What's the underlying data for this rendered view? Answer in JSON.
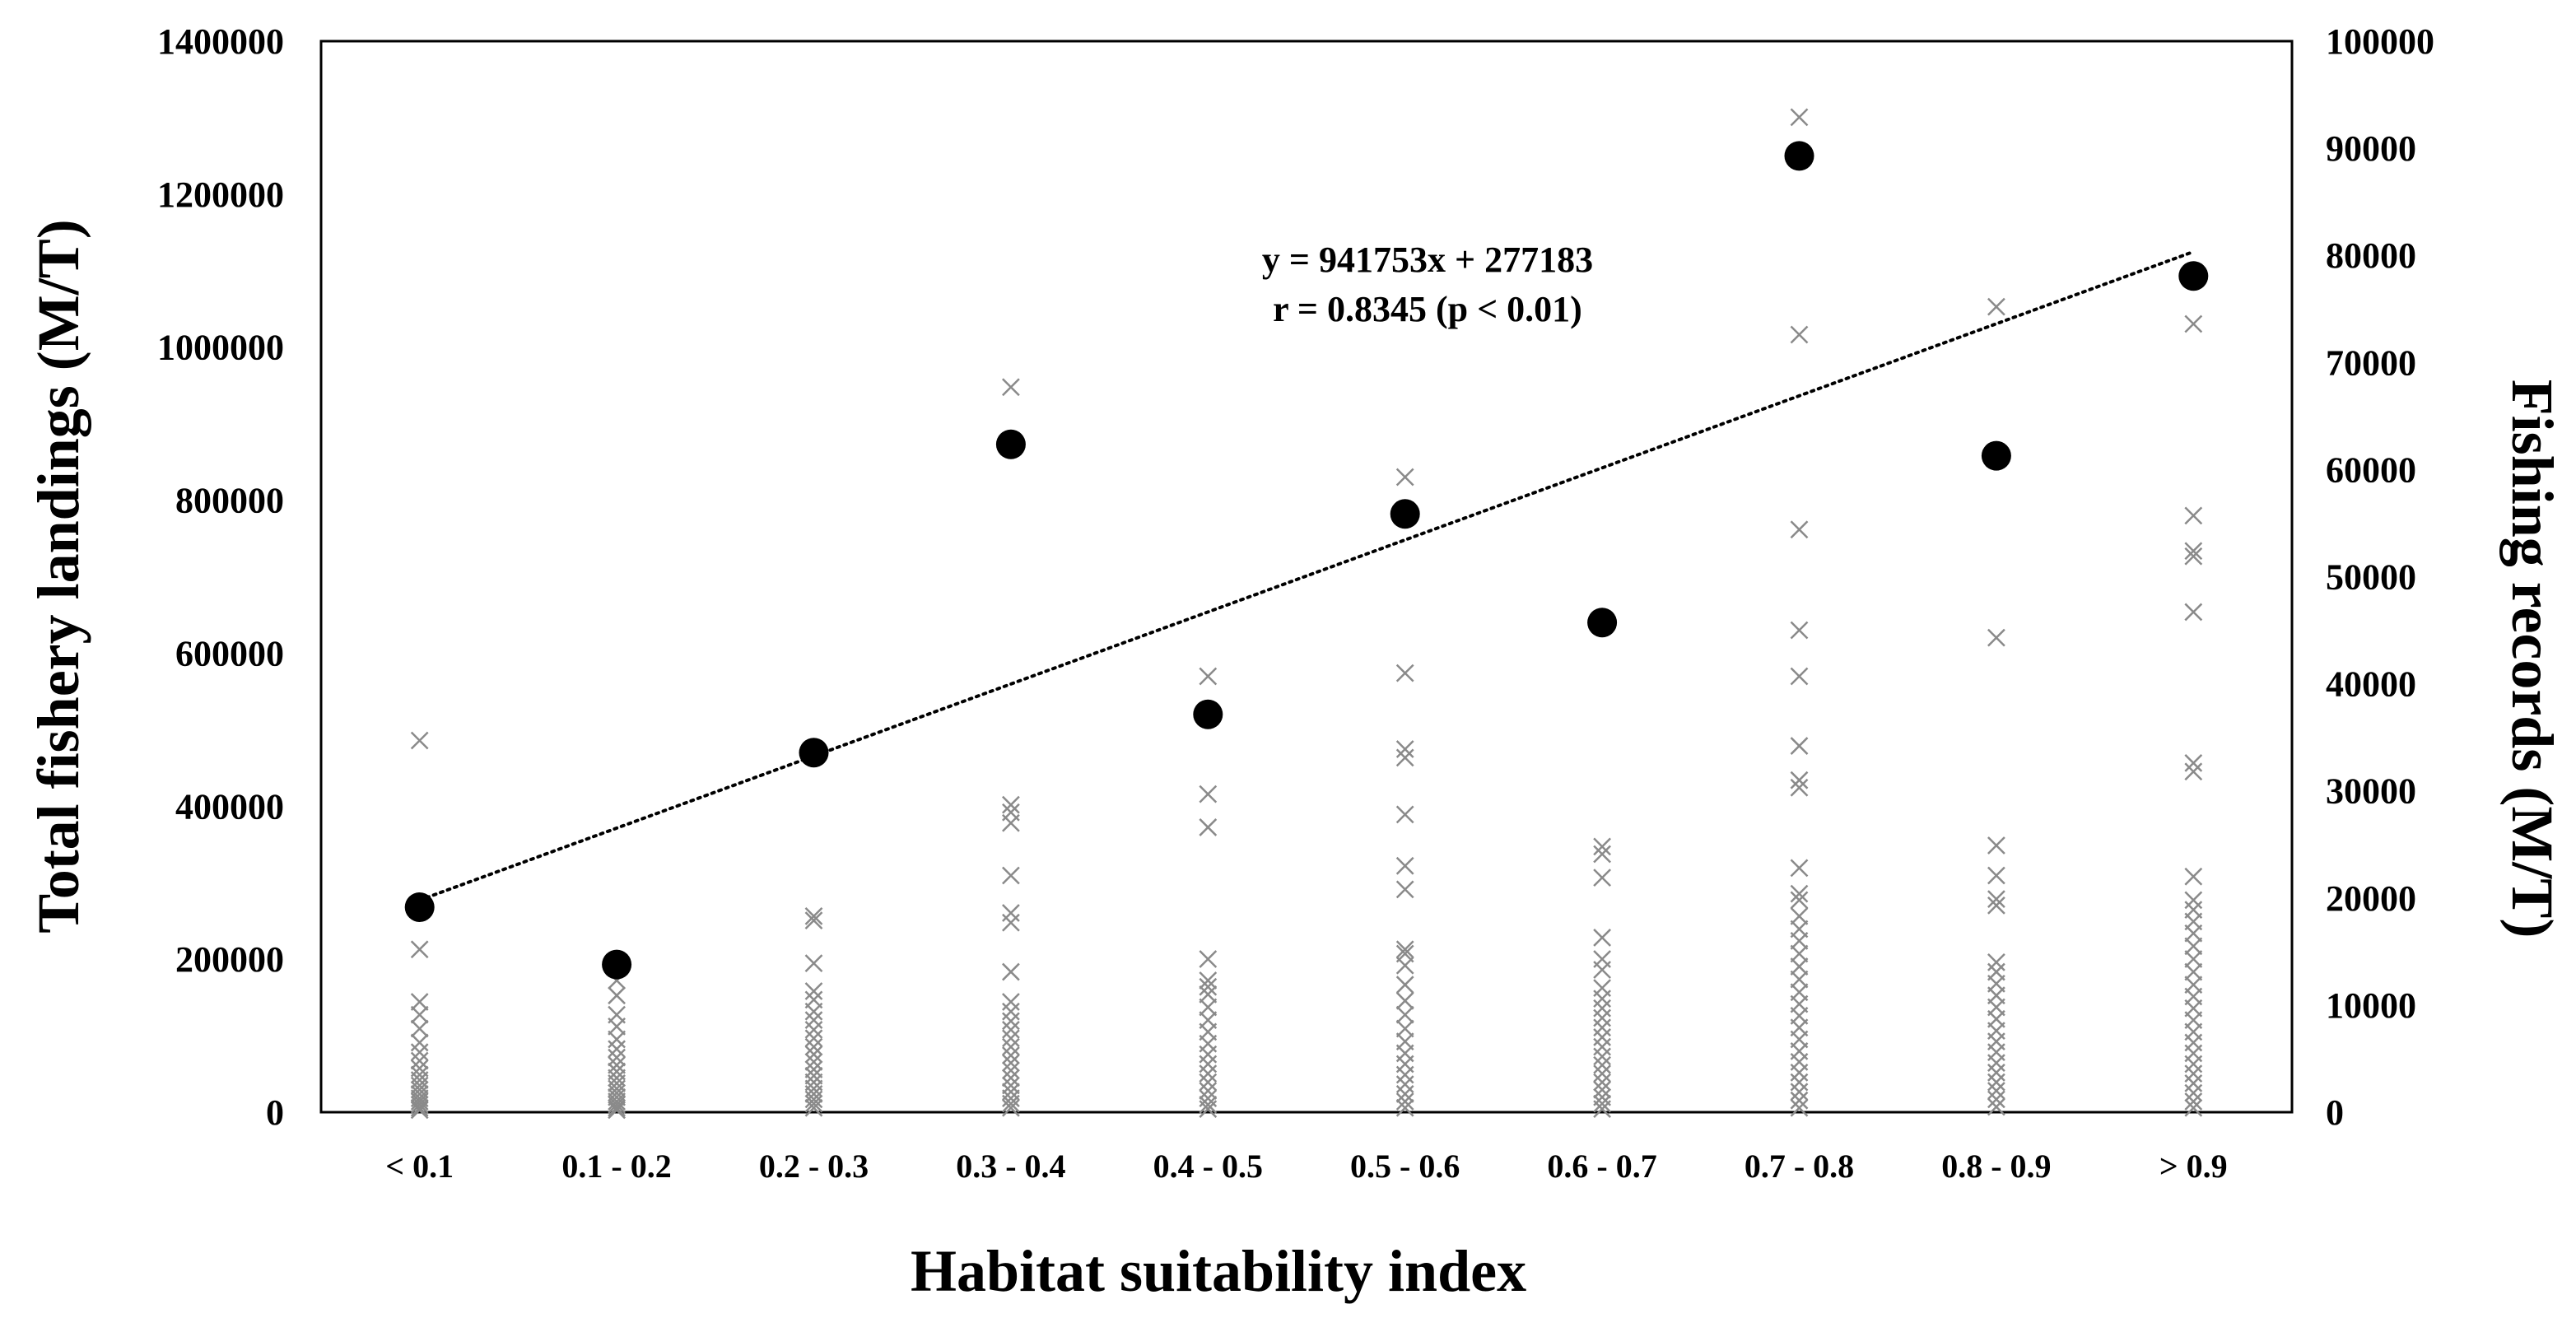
{
  "chart_data": {
    "type": "scatter",
    "xlabel": "Habitat suitability index",
    "ylabel_left": "Total fishery landings (M/T)",
    "ylabel_right": "Fishing records (M/T)",
    "categories": [
      "< 0.1",
      "0.1 - 0.2",
      "0.2 - 0.3",
      "0.3 - 0.4",
      "0.4 - 0.5",
      "0.5 - 0.6",
      "0.6 - 0.7",
      "0.7 - 0.8",
      "0.8 - 0.9",
      "> 0.9"
    ],
    "y_left": {
      "min": 0,
      "max": 1400000,
      "ticks": [
        "0",
        "200000",
        "400000",
        "600000",
        "800000",
        "1000000",
        "1200000",
        "1400000"
      ]
    },
    "y_right": {
      "min": 0,
      "max": 100000,
      "ticks": [
        "0",
        "10000",
        "20000",
        "30000",
        "40000",
        "50000",
        "60000",
        "70000",
        "80000",
        "90000",
        "100000"
      ]
    },
    "series": [
      {
        "name": "Total fishery landings",
        "axis": "left",
        "marker": "filled-circle",
        "color": "#000000",
        "values": [
          268000,
          193000,
          470000,
          873000,
          520000,
          782000,
          640000,
          1250000,
          858000,
          1093000
        ]
      },
      {
        "name": "Fishing records",
        "axis": "right",
        "marker": "x",
        "color": "#8a8a8a",
        "records": [
          [
            34700,
            15200,
            10300,
            9100,
            7800,
            6500,
            5600,
            4800,
            4100,
            3500,
            3000,
            2500,
            2100,
            1700,
            1300,
            1000,
            700,
            400,
            200
          ],
          [
            12300,
            10900,
            9100,
            8000,
            6800,
            5900,
            5100,
            4400,
            3800,
            3200,
            2700,
            2200,
            1800,
            1400,
            1000,
            700,
            400,
            200
          ],
          [
            18300,
            17900,
            13900,
            11300,
            10500,
            9400,
            8600,
            7700,
            6900,
            6100,
            5400,
            4700,
            4000,
            3400,
            2800,
            2200,
            1700,
            1200,
            800,
            400
          ],
          [
            67700,
            28700,
            28000,
            27000,
            22100,
            18600,
            17700,
            13100,
            10300,
            9400,
            8500,
            7700,
            6900,
            6100,
            5300,
            4600,
            3900,
            3200,
            2500,
            1900,
            1300,
            800,
            400
          ],
          [
            40700,
            29700,
            26600,
            14300,
            12300,
            11700,
            11000,
            9800,
            8600,
            7500,
            6400,
            5400,
            4500,
            3600,
            2800,
            2000,
            1300,
            700,
            300
          ],
          [
            59300,
            41000,
            33900,
            33100,
            27800,
            23000,
            20800,
            15200,
            14800,
            13700,
            11900,
            10400,
            9100,
            7800,
            6600,
            5500,
            4500,
            3500,
            2600,
            1700,
            1000,
            400
          ],
          [
            24800,
            24100,
            21900,
            16300,
            14300,
            13300,
            11600,
            10600,
            9700,
            8800,
            7900,
            7000,
            6100,
            5200,
            4400,
            3600,
            2800,
            2100,
            1400,
            800,
            300
          ],
          [
            92900,
            72600,
            54400,
            45000,
            40700,
            34200,
            31000,
            30300,
            22800,
            20400,
            19800,
            18300,
            17100,
            16000,
            14800,
            13600,
            12400,
            11200,
            10100,
            9000,
            7900,
            6800,
            5700,
            4700,
            3700,
            2800,
            1900,
            1100,
            400
          ],
          [
            75200,
            44300,
            24900,
            22100,
            19900,
            19300,
            14000,
            13100,
            12000,
            10900,
            9800,
            8700,
            7600,
            6600,
            5600,
            4600,
            3700,
            2800,
            2000,
            1200,
            500
          ],
          [
            73600,
            55700,
            52400,
            51900,
            46700,
            32600,
            31800,
            22000,
            19800,
            18900,
            17800,
            16700,
            15500,
            14300,
            13100,
            11900,
            10800,
            9700,
            8600,
            7500,
            6500,
            5500,
            4500,
            3600,
            2700,
            1800,
            1000,
            400
          ]
        ]
      }
    ],
    "trendline": {
      "style": "dotted",
      "slope": 941753,
      "intercept": 277183,
      "x_start": 0,
      "x_end": 0.9,
      "equation": "y = 941753x + 277183",
      "correlation": "r = 0.8345 (p < 0.01)"
    }
  }
}
